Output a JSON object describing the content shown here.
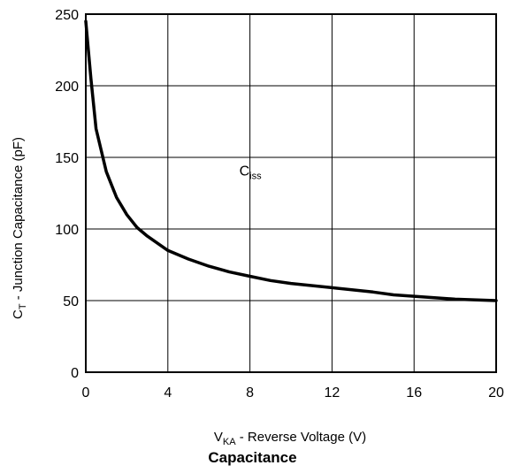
{
  "chart_data": {
    "type": "line",
    "title": "Capacitance",
    "xlabel": {
      "main": "V",
      "sub": "KA",
      "rest": " - Reverse Voltage (V)"
    },
    "ylabel": {
      "main": "C",
      "sub": "T",
      "rest": " - Junction Capacitance (pF)"
    },
    "xlim": [
      0,
      20
    ],
    "ylim": [
      0,
      250
    ],
    "x_ticks": [
      0,
      4,
      8,
      12,
      16,
      20
    ],
    "y_ticks": [
      0,
      50,
      100,
      150,
      200,
      250
    ],
    "grid": true,
    "series": [
      {
        "name": "",
        "x": [
          0,
          0.25,
          0.5,
          1,
          1.5,
          2,
          2.5,
          3,
          4,
          5,
          6,
          7,
          8,
          9,
          10,
          12,
          14,
          15,
          16,
          18,
          20
        ],
        "y": [
          245,
          205,
          170,
          140,
          122,
          110,
          101,
          95,
          85,
          79,
          74,
          70,
          67,
          64,
          62,
          59,
          56,
          54,
          53,
          51,
          50
        ]
      }
    ],
    "annotations": [
      {
        "text": "C",
        "sub": "iss",
        "x": 8,
        "y": 125
      }
    ]
  }
}
